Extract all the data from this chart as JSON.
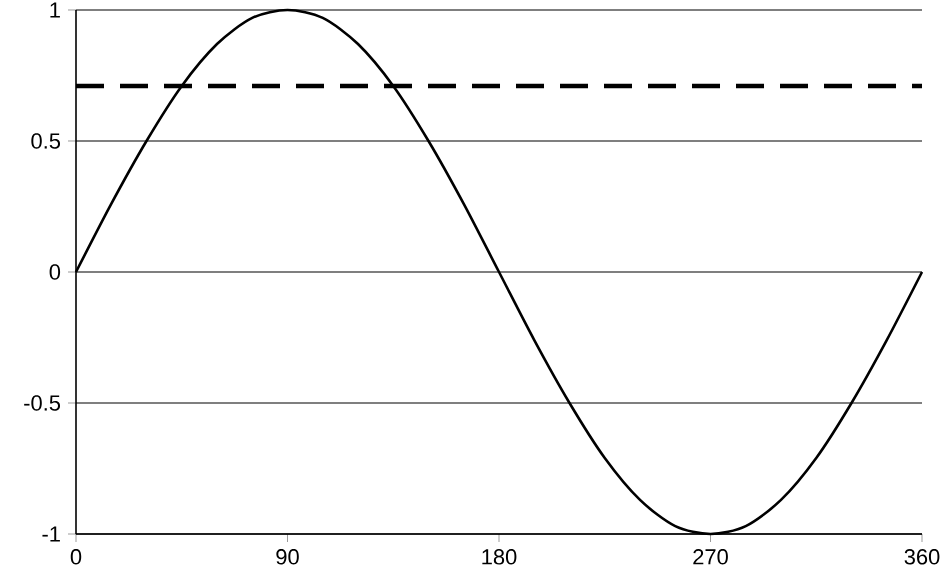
{
  "chart_data": {
    "type": "line",
    "x": [
      0,
      15,
      30,
      45,
      60,
      75,
      90,
      105,
      120,
      135,
      150,
      165,
      180,
      195,
      210,
      225,
      240,
      255,
      270,
      285,
      300,
      315,
      330,
      345,
      360
    ],
    "series": [
      {
        "color": "#000000",
        "values": [
          0,
          0.26,
          0.5,
          0.71,
          0.87,
          0.97,
          1,
          0.97,
          0.87,
          0.71,
          0.5,
          0.26,
          0,
          -0.26,
          -0.5,
          -0.71,
          -0.87,
          -0.97,
          -1,
          -0.97,
          -0.87,
          -0.71,
          -0.5,
          -0.26,
          0
        ]
      }
    ],
    "xlim": [
      0,
      360
    ],
    "xticks": [
      0,
      90,
      180,
      270,
      360
    ],
    "ylim": [
      -1,
      1
    ],
    "yticks": [
      -1,
      -0.5,
      0,
      0.5,
      1
    ],
    "grid": "y",
    "line_style": "solid",
    "marker": "none",
    "ref_lines": [
      {
        "axis": "y",
        "value": 0.71,
        "color": "#000000",
        "line_style": "dashed"
      }
    ]
  }
}
